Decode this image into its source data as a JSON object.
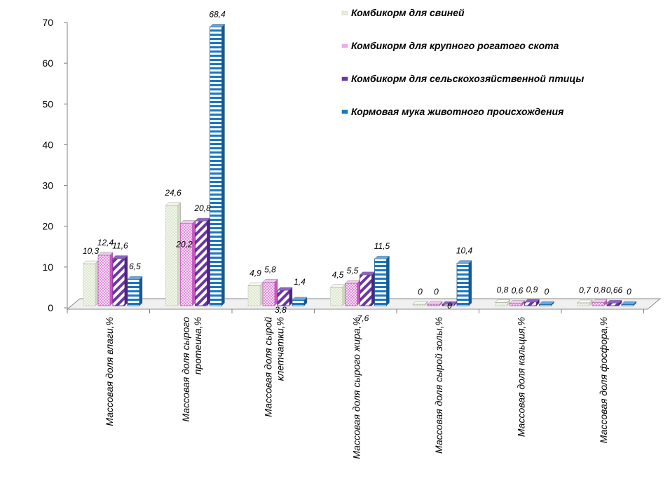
{
  "chart_data": {
    "type": "bar",
    "title": "",
    "xlabel": "",
    "ylabel": "",
    "ylim": [
      0,
      70
    ],
    "yticks": [
      0,
      10,
      20,
      30,
      40,
      50,
      60,
      70
    ],
    "legend_position": "top-right",
    "grid": false,
    "categories": [
      [
        "Массовая доля влаги,%"
      ],
      [
        "Массовая доля сырого",
        "протеина,%"
      ],
      [
        "Массовая доля сырой",
        "клетчатки,%"
      ],
      [
        "Массовая доля сырого жира,%"
      ],
      [
        "Массовая доля сырой золы,%"
      ],
      [
        "Массовая доля кальция,%"
      ],
      [
        "Массовая доля фосфора,%"
      ]
    ],
    "series": [
      {
        "name": "Комбикорм для свиней",
        "color": "#e8efdc",
        "pattern": "dots",
        "values": [
          10.3,
          24.6,
          4.9,
          4.5,
          0,
          0.8,
          0.7
        ],
        "labels": [
          "10,3",
          "24,6",
          "4,9",
          "4,5",
          "0",
          "0,8",
          "0,7"
        ]
      },
      {
        "name": "Комбикорм для крупного рогатого скота",
        "color": "#e070d8",
        "pattern": "dots-pink",
        "values": [
          12.4,
          20.2,
          5.8,
          5.5,
          0,
          0.6,
          0.8
        ],
        "labels": [
          "12,4",
          "20,2",
          "5,8",
          "5,5",
          "0",
          "0,6",
          "0,8"
        ]
      },
      {
        "name": "Комбикорм для сельскохозяйственной птицы",
        "color": "#6a35a8",
        "pattern": "diagonal",
        "values": [
          11.6,
          20.8,
          3.8,
          7.6,
          0,
          0.9,
          0.66
        ],
        "labels": [
          "11,6",
          "20,8",
          "3,8",
          "7,6",
          "0",
          "0,9",
          "0,66"
        ]
      },
      {
        "name": "Кормовая мука животного происхождения",
        "color": "#1a78c2",
        "pattern": "horizontal",
        "values": [
          6.5,
          68.4,
          1.4,
          11.5,
          10.4,
          0,
          0
        ],
        "labels": [
          "6,5",
          "68,4",
          "1,4",
          "11,5",
          "10,4",
          "0",
          "0"
        ]
      }
    ]
  }
}
